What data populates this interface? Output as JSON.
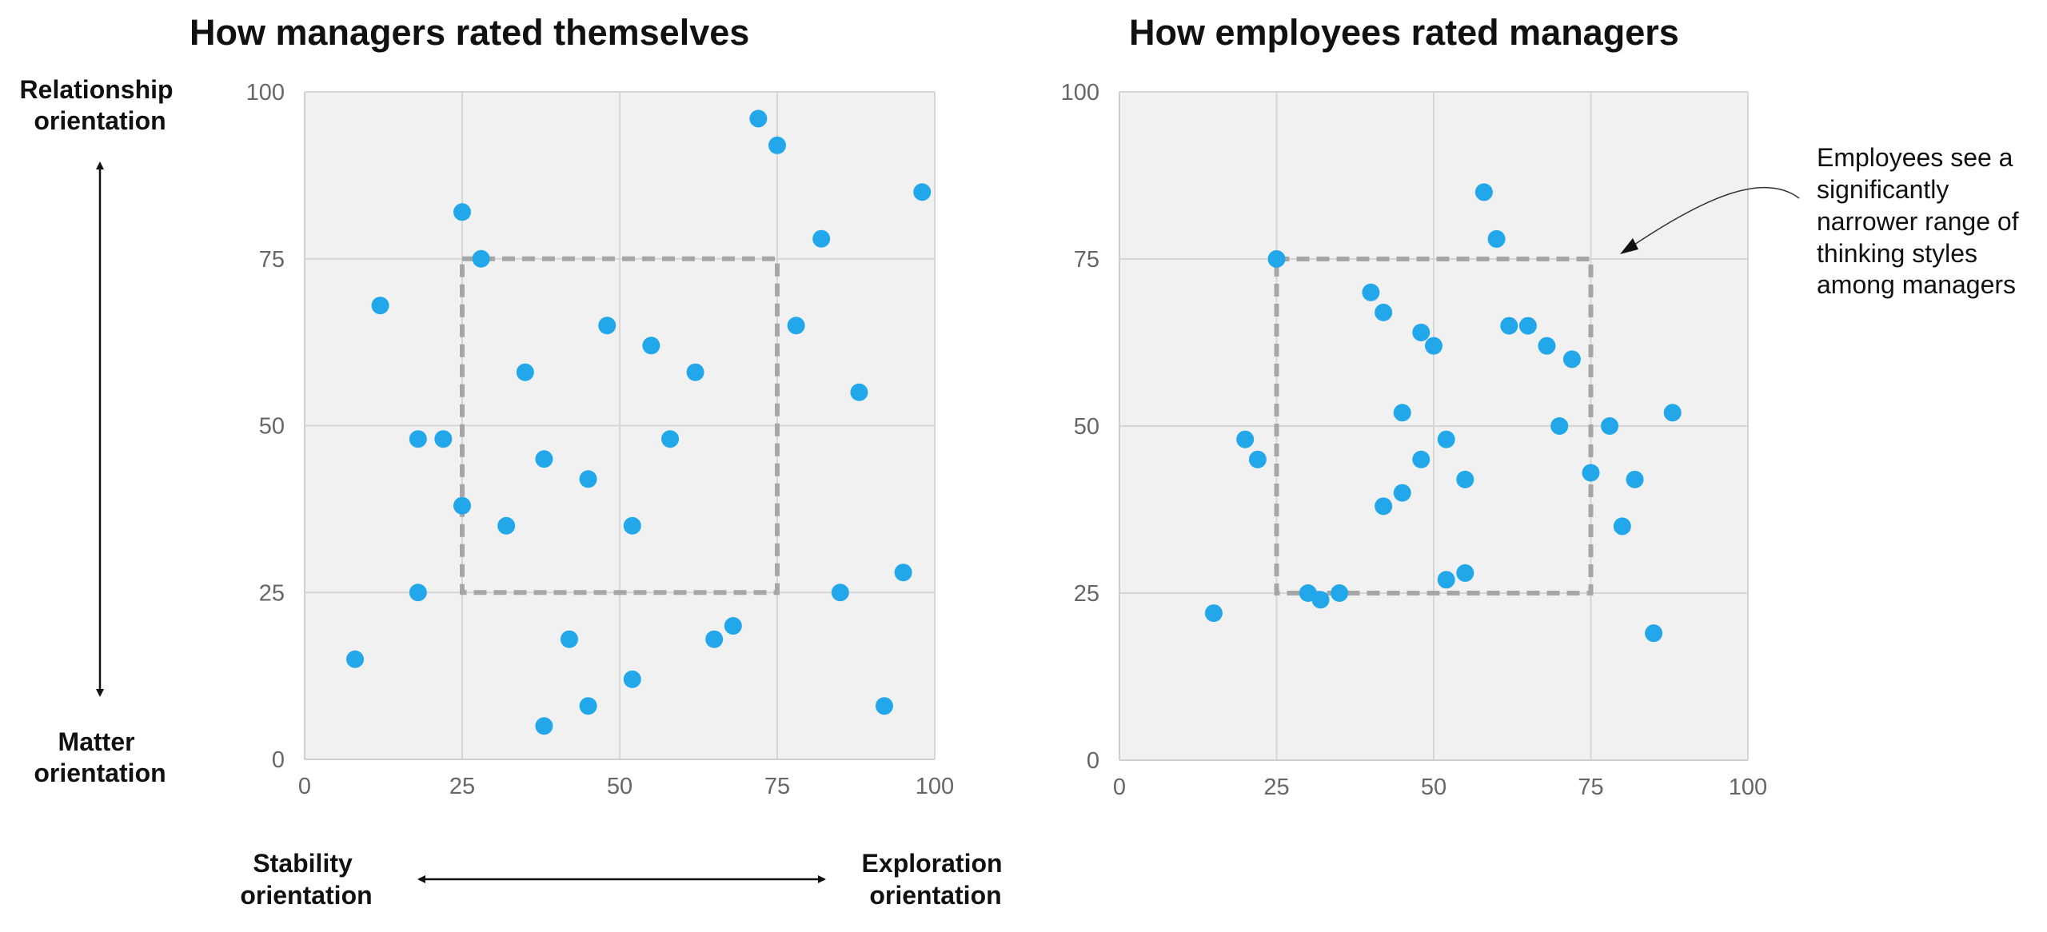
{
  "chart_data": [
    {
      "type": "scatter",
      "title": "How managers rated themselves",
      "xlim": [
        0,
        100
      ],
      "ylim": [
        0,
        100
      ],
      "x_ticks": [
        "0",
        "25",
        "50",
        "75",
        "100"
      ],
      "y_ticks": [
        "0",
        "25",
        "50",
        "75",
        "100"
      ],
      "grid": true,
      "reference_box": {
        "x": [
          25,
          75
        ],
        "y": [
          25,
          75
        ]
      },
      "point_color": "#22a7ea",
      "points": [
        {
          "x": 8,
          "y": 15
        },
        {
          "x": 12,
          "y": 68
        },
        {
          "x": 18,
          "y": 48
        },
        {
          "x": 18,
          "y": 25
        },
        {
          "x": 22,
          "y": 48
        },
        {
          "x": 25,
          "y": 82
        },
        {
          "x": 25,
          "y": 38
        },
        {
          "x": 28,
          "y": 75
        },
        {
          "x": 32,
          "y": 35
        },
        {
          "x": 35,
          "y": 58
        },
        {
          "x": 38,
          "y": 45
        },
        {
          "x": 38,
          "y": 5
        },
        {
          "x": 42,
          "y": 18
        },
        {
          "x": 45,
          "y": 42
        },
        {
          "x": 45,
          "y": 8
        },
        {
          "x": 48,
          "y": 65
        },
        {
          "x": 52,
          "y": 35
        },
        {
          "x": 52,
          "y": 12
        },
        {
          "x": 55,
          "y": 62
        },
        {
          "x": 58,
          "y": 48
        },
        {
          "x": 62,
          "y": 58
        },
        {
          "x": 65,
          "y": 18
        },
        {
          "x": 68,
          "y": 20
        },
        {
          "x": 72,
          "y": 96
        },
        {
          "x": 75,
          "y": 92
        },
        {
          "x": 78,
          "y": 65
        },
        {
          "x": 82,
          "y": 78
        },
        {
          "x": 85,
          "y": 25
        },
        {
          "x": 88,
          "y": 55
        },
        {
          "x": 92,
          "y": 8
        },
        {
          "x": 95,
          "y": 28
        },
        {
          "x": 98,
          "y": 85
        }
      ]
    },
    {
      "type": "scatter",
      "title": "How employees rated managers",
      "xlim": [
        0,
        100
      ],
      "ylim": [
        0,
        100
      ],
      "x_ticks": [
        "0",
        "25",
        "50",
        "75",
        "100"
      ],
      "y_ticks": [
        "0",
        "25",
        "50",
        "75",
        "100"
      ],
      "grid": true,
      "reference_box": {
        "x": [
          25,
          75
        ],
        "y": [
          25,
          75
        ]
      },
      "point_color": "#22a7ea",
      "points": [
        {
          "x": 15,
          "y": 22
        },
        {
          "x": 20,
          "y": 48
        },
        {
          "x": 22,
          "y": 45
        },
        {
          "x": 25,
          "y": 75
        },
        {
          "x": 30,
          "y": 25
        },
        {
          "x": 32,
          "y": 24
        },
        {
          "x": 35,
          "y": 25
        },
        {
          "x": 40,
          "y": 70
        },
        {
          "x": 42,
          "y": 67
        },
        {
          "x": 42,
          "y": 38
        },
        {
          "x": 45,
          "y": 52
        },
        {
          "x": 45,
          "y": 40
        },
        {
          "x": 48,
          "y": 64
        },
        {
          "x": 48,
          "y": 45
        },
        {
          "x": 50,
          "y": 62
        },
        {
          "x": 52,
          "y": 48
        },
        {
          "x": 52,
          "y": 27
        },
        {
          "x": 55,
          "y": 42
        },
        {
          "x": 55,
          "y": 28
        },
        {
          "x": 58,
          "y": 85
        },
        {
          "x": 60,
          "y": 78
        },
        {
          "x": 62,
          "y": 65
        },
        {
          "x": 65,
          "y": 65
        },
        {
          "x": 68,
          "y": 62
        },
        {
          "x": 70,
          "y": 50
        },
        {
          "x": 72,
          "y": 60
        },
        {
          "x": 75,
          "y": 43
        },
        {
          "x": 78,
          "y": 50
        },
        {
          "x": 80,
          "y": 35
        },
        {
          "x": 82,
          "y": 42
        },
        {
          "x": 85,
          "y": 19
        },
        {
          "x": 88,
          "y": 52
        }
      ]
    }
  ],
  "vertical_axis": {
    "top_label": [
      "Relationship",
      "orientation"
    ],
    "bottom_label": [
      "Matter",
      "orientation"
    ]
  },
  "horizontal_axis": {
    "left_label": [
      "Stability",
      "orientation"
    ],
    "right_label": [
      "Exploration",
      "orientation"
    ]
  },
  "annotation": {
    "lines": [
      "Employees see a",
      "significantly",
      "narrower range of",
      "thinking styles",
      "among managers"
    ]
  }
}
